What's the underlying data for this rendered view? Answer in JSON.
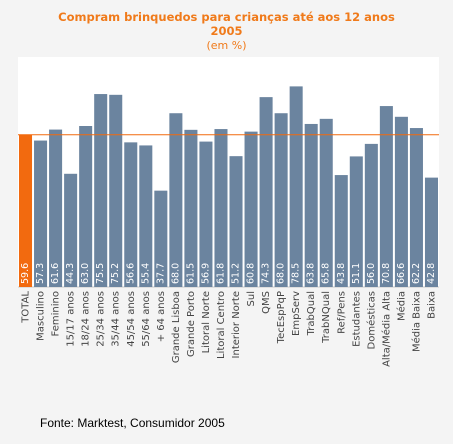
{
  "chart_data": {
    "type": "bar",
    "title_lines": [
      "Compram brinquedos para crianças até aos 12 anos",
      "2005"
    ],
    "subtitle": "(em %)",
    "categories": [
      "TOTAL",
      "Masculino",
      "Feminino",
      "15/17 anos",
      "18/24 anos",
      "25/34 anos",
      "35/44 anos",
      "45/54 anos",
      "55/64 anos",
      "+ 64 anos",
      "Grande Lisboa",
      "Grande Porto",
      "Litoral Norte",
      "Litoral Centro",
      "Interior Norte",
      "Sul",
      "QMS",
      "TecEspPqP",
      "EmpServ",
      "TrabQual",
      "TrabNQual",
      "Ref/Pens",
      "Estudantes",
      "Domésticas",
      "Alta/Média Alta",
      "Média",
      "Média Baixa",
      "Baixa"
    ],
    "values": [
      59.6,
      57.3,
      61.6,
      44.3,
      63.0,
      75.5,
      75.2,
      56.6,
      55.4,
      37.7,
      68.0,
      61.5,
      56.9,
      61.8,
      51.2,
      60.8,
      74.3,
      68.0,
      78.5,
      63.8,
      65.8,
      43.8,
      51.1,
      56.0,
      70.8,
      66.6,
      62.2,
      42.8
    ],
    "value_labels": [
      "59.6",
      "57.3",
      "61.6",
      "44.3",
      "63.0",
      "75.5",
      "75.2",
      "56.6",
      "55.4",
      "37.7",
      "68.0",
      "61.5",
      "56.9",
      "61.8",
      "51.2",
      "60.8",
      "74.3",
      "68.0",
      "78.5",
      "63.8",
      "65.8",
      "43.8",
      "51.1",
      "56.0",
      "70.8",
      "66.6",
      "62.2",
      "42.8"
    ],
    "reference_line": 59.6,
    "ylim": [
      0,
      90
    ],
    "grid": false,
    "colors": {
      "highlight": "#f26a0f",
      "bar": "#6b849f",
      "reference_line": "#f26a0f",
      "plot_bg": "#ffffff",
      "page_bg": "#f4f4f4",
      "title": "#f07a1a"
    },
    "source": "Fonte: Marktest, Consumidor 2005"
  }
}
